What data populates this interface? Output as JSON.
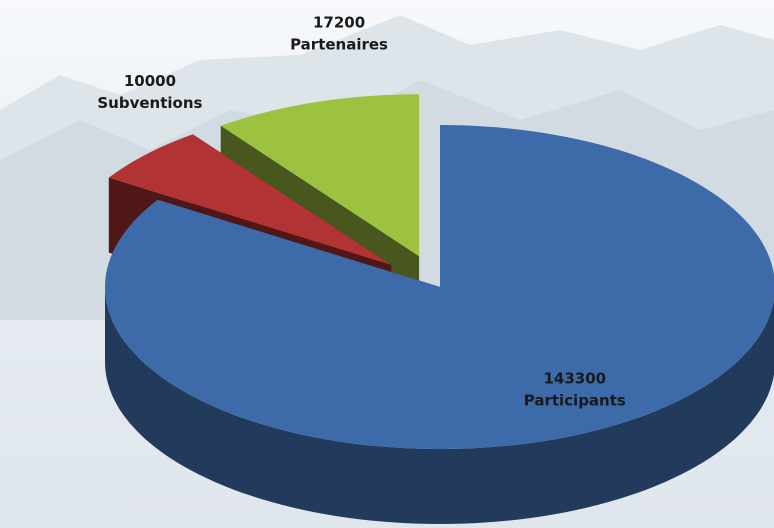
{
  "chart_data": {
    "type": "pie",
    "categories": [
      "Participants",
      "Subventions",
      "Partenaires"
    ],
    "values": [
      143300,
      10000,
      17200
    ],
    "colors": [
      "#3d6aa8",
      "#b23333",
      "#9dc240"
    ]
  }
}
